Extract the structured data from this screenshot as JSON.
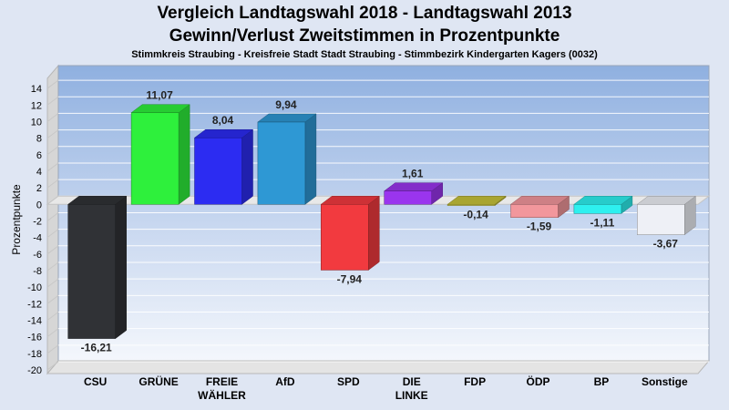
{
  "chart_data": {
    "type": "bar",
    "title": "Vergleich Landtagswahl 2018 - Landtagswahl 2013",
    "subtitle": "Gewinn/Verlust Zweitstimmen in Prozentpunkte",
    "subsubtitle": "Stimmkreis Straubing - Kreisfreie Stadt Stadt Straubing - Stimmbezirk Kindergarten Kagers (0032)",
    "ylabel": "Prozentpunkte",
    "xlabel": "",
    "ylim": [
      -20,
      15
    ],
    "yticks": [
      14,
      12,
      10,
      8,
      6,
      4,
      2,
      0,
      -2,
      -4,
      -6,
      -8,
      -10,
      -12,
      -14,
      -16,
      -18,
      -20
    ],
    "grid": true,
    "categories": [
      "CSU",
      "GRÜNE",
      "FREIE\nWÄHLER",
      "AfD",
      "SPD",
      "DIE\nLINKE",
      "FDP",
      "ÖDP",
      "BP",
      "Sonstige"
    ],
    "values": [
      -16.21,
      11.07,
      8.04,
      9.94,
      -7.94,
      1.61,
      -0.14,
      -1.59,
      -1.11,
      -3.67
    ],
    "value_labels": [
      "-16,21",
      "11,07",
      "8,04",
      "9,94",
      "-7,94",
      "1,61",
      "-0,14",
      "-1,59",
      "-1,11",
      "-3,67"
    ],
    "colors": [
      "#303236",
      "#2ef03c",
      "#2c2cf2",
      "#2e98d4",
      "#f23a3f",
      "#9a35ee",
      "#c7c23a",
      "#f2979c",
      "#2ef0ef",
      "#eef0f6"
    ]
  }
}
